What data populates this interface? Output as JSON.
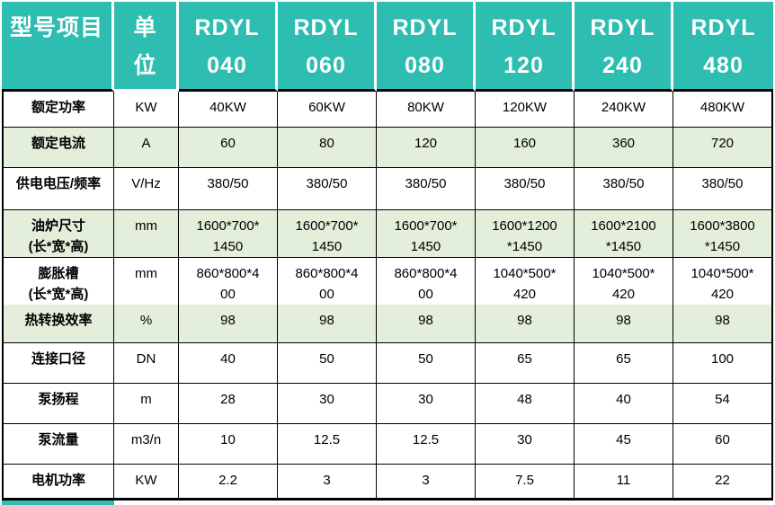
{
  "table": {
    "header": {
      "item_col": "型号项目",
      "unit_col_line1": "单",
      "unit_col_line2": "位",
      "model_prefix": "RDYL",
      "model_numbers": [
        "040",
        "060",
        "080",
        "120",
        "240",
        "480"
      ]
    },
    "rows": [
      {
        "label": "额定功率",
        "sublabel": "",
        "unit": "KW",
        "values": [
          "40KW",
          "60KW",
          "80KW",
          "120KW",
          "240KW",
          "480KW"
        ],
        "shaded": false
      },
      {
        "label": "额定电流",
        "sublabel": "",
        "unit": "A",
        "values": [
          "60",
          "80",
          "120",
          "160",
          "360",
          "720"
        ],
        "shaded": true
      },
      {
        "label": "供电电压/频率",
        "sublabel": "",
        "unit": "V/Hz",
        "values": [
          "380/50",
          "380/50",
          "380/50",
          "380/50",
          "380/50",
          "380/50"
        ],
        "shaded": false
      },
      {
        "label": "油炉尺寸",
        "sublabel": "(长*宽*高)",
        "unit": "mm",
        "values": [
          "1600*700*\n1450",
          "1600*700*\n1450",
          "1600*700*\n1450",
          "1600*1200\n*1450",
          "1600*2100\n*1450",
          "1600*3800\n*1450"
        ],
        "shaded": true
      },
      {
        "label": "膨胀槽",
        "sublabel": "(长*宽*高)",
        "unit": "mm",
        "values": [
          "860*800*4\n00",
          "860*800*4\n00",
          "860*800*4\n00",
          "1040*500*\n420",
          "1040*500*\n420",
          "1040*500*\n420"
        ],
        "shaded": false
      },
      {
        "label": "热转换效率",
        "sublabel": "",
        "unit": "%",
        "values": [
          "98",
          "98",
          "98",
          "98",
          "98",
          "98"
        ],
        "shaded": true
      },
      {
        "label": "连接口径",
        "sublabel": "",
        "unit": "DN",
        "values": [
          "40",
          "50",
          "50",
          "65",
          "65",
          "100"
        ],
        "shaded": false
      },
      {
        "label": "泵扬程",
        "sublabel": "",
        "unit": "m",
        "values": [
          "28",
          "30",
          "30",
          "48",
          "40",
          "54"
        ],
        "shaded": false
      },
      {
        "label": "泵流量",
        "sublabel": "",
        "unit": "m3/n",
        "values": [
          "10",
          "12.5",
          "12.5",
          "30",
          "45",
          "60"
        ],
        "shaded": false
      },
      {
        "label": "电机功率",
        "sublabel": "",
        "unit": "KW",
        "values": [
          "2.2",
          "3",
          "3",
          "7.5",
          "11",
          "22"
        ],
        "shaded": false
      }
    ],
    "colors": {
      "header_bg": "#2DBDB1",
      "shaded_row_bg": "#E3EFDA",
      "border": "#000000",
      "header_text": "#FFFFFF",
      "body_text": "#000000"
    }
  }
}
